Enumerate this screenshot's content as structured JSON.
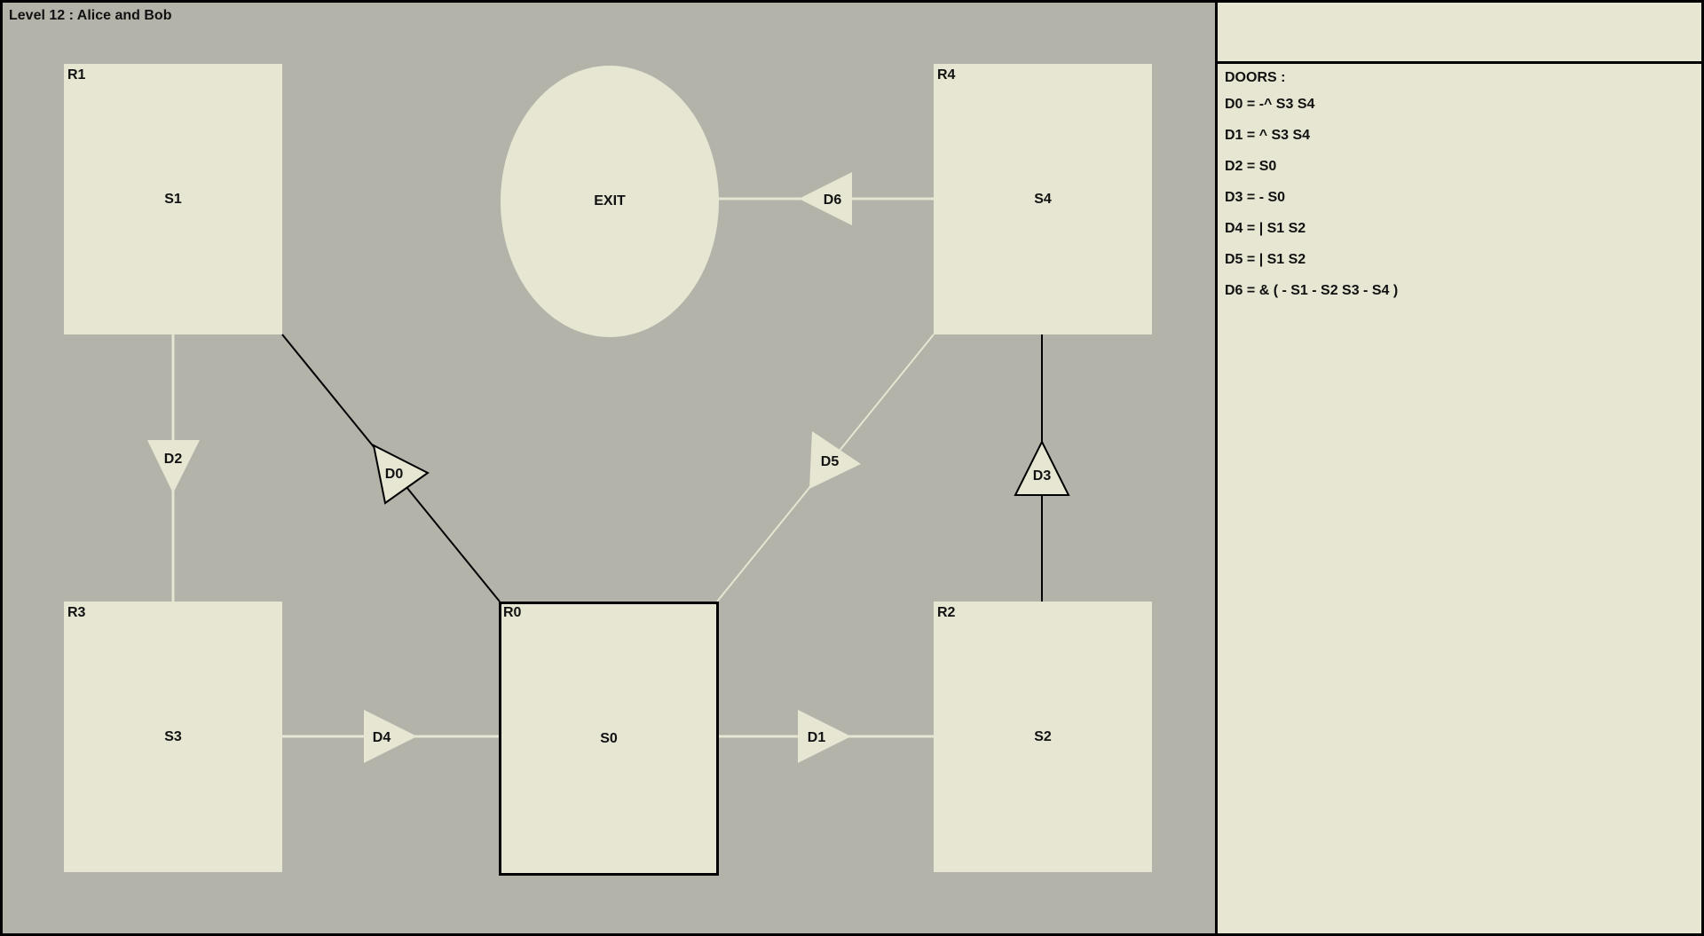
{
  "level_title": "Level 12 : Alice and Bob",
  "exit_label": "EXIT",
  "rooms": {
    "r0": {
      "name": "R0",
      "switch": "S0"
    },
    "r1": {
      "name": "R1",
      "switch": "S1"
    },
    "r2": {
      "name": "R2",
      "switch": "S2"
    },
    "r3": {
      "name": "R3",
      "switch": "S3"
    },
    "r4": {
      "name": "R4",
      "switch": "S4"
    }
  },
  "doors": {
    "d0": "D0",
    "d1": "D1",
    "d2": "D2",
    "d3": "D3",
    "d4": "D4",
    "d5": "D5",
    "d6": "D6"
  },
  "panel": {
    "heading": "DOORS :",
    "rules": [
      "D0 = -^ S3 S4",
      "D1 = ^ S3 S4",
      "D2 = S0",
      "D3 = - S0",
      "D4 = | S1 S2",
      "D5 = | S1 S2",
      "D6 = & ( - S1 - S2 S3 - S4 )"
    ]
  },
  "colors": {
    "board": "#b3b3a9",
    "room": "#e6e6d3",
    "open_link": "#e6e6d3",
    "closed_link": "#000000"
  }
}
